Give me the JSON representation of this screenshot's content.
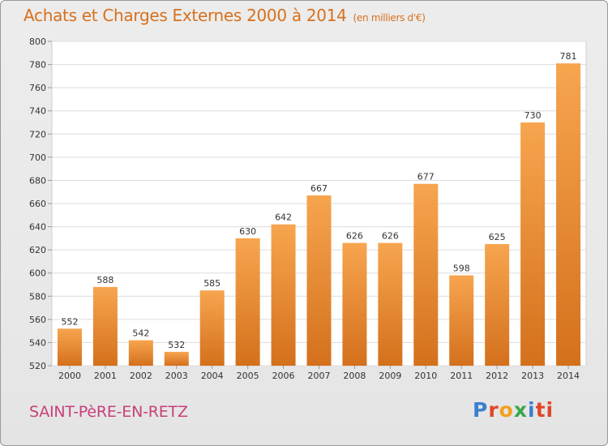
{
  "header": {
    "title": "Achats et Charges Externes 2000 à 2014",
    "unit": "(en milliers d'€)"
  },
  "footer": {
    "commune": "SAINT-PèRE-EN-RETZ",
    "logo": "Proxiti"
  },
  "colors": {
    "bar_top": "#f7a54f",
    "bar_bottom": "#d4701c",
    "title": "#d7701c",
    "commune": "#c8407a"
  },
  "chart_data": {
    "type": "bar",
    "title": "Achats et Charges Externes 2000 à 2014",
    "subtitle": "(en milliers d'€)",
    "categories": [
      "2000",
      "2001",
      "2002",
      "2003",
      "2004",
      "2005",
      "2006",
      "2007",
      "2008",
      "2009",
      "2010",
      "2011",
      "2012",
      "2013",
      "2014"
    ],
    "values": [
      552,
      588,
      542,
      532,
      585,
      630,
      642,
      667,
      626,
      626,
      677,
      598,
      625,
      730,
      781
    ],
    "ylim": [
      520,
      800
    ],
    "yticks": [
      520,
      540,
      560,
      580,
      600,
      620,
      640,
      660,
      680,
      700,
      720,
      740,
      760,
      780,
      800
    ],
    "grid": true,
    "xlabel": "",
    "ylabel": ""
  }
}
